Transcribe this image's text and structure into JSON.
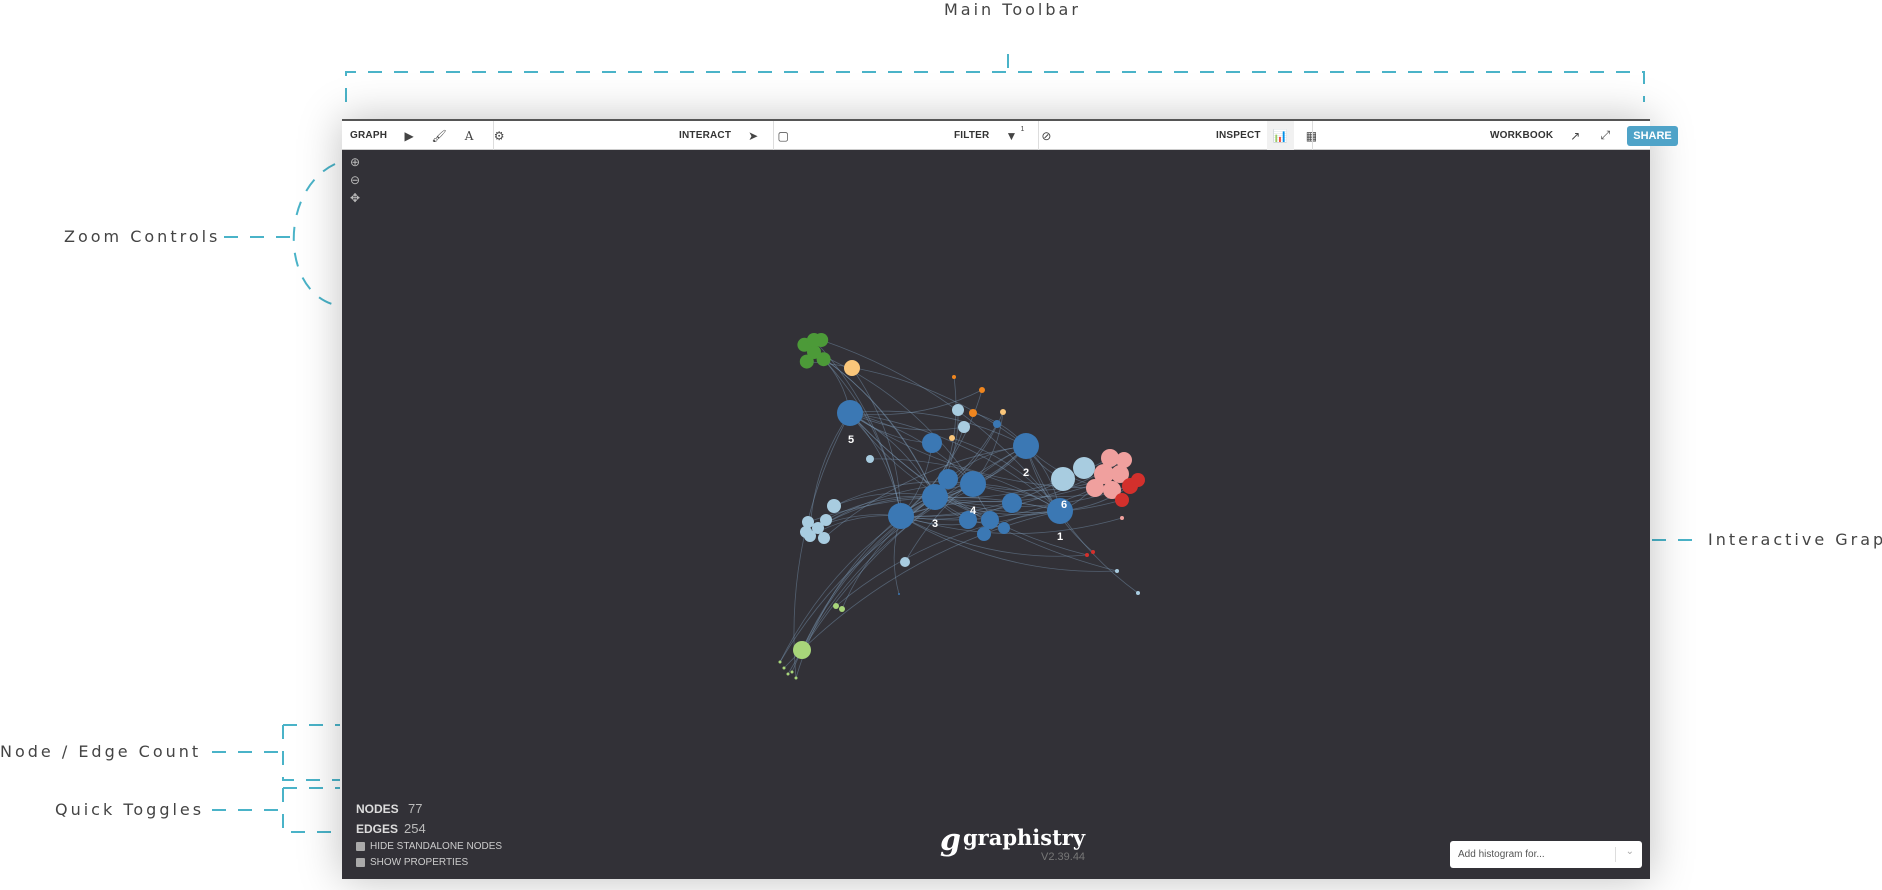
{
  "annotations": {
    "main_toolbar": "Main Toolbar",
    "zoom_controls": "Zoom Controls",
    "interactive_graph": "Interactive Graph",
    "node_edge_count": "Node / Edge Count",
    "quick_toggles": "Quick Toggles"
  },
  "accent_color": "#4ab3c8",
  "toolbar": {
    "graph": "GRAPH",
    "interact": "INTERACT",
    "filter": "FILTER",
    "filter_badge": "1",
    "inspect": "INSPECT",
    "workbook": "WORKBOOK",
    "share": "SHARE",
    "icons": [
      "play-icon",
      "brush-icon",
      "font-icon",
      "gears-icon",
      "pointer-icon",
      "select-box-icon",
      "filter-icon",
      "exclude-icon",
      "histogram-icon",
      "table-icon",
      "external-link-icon",
      "fullscreen-icon"
    ]
  },
  "zoom_controls": [
    "zoom-in-icon",
    "zoom-out-icon",
    "center-icon"
  ],
  "stats": {
    "nodes_label": "NODES",
    "nodes": "77",
    "edges_label": "EDGES",
    "edges": "254"
  },
  "toggles": {
    "hide_standalone": "HIDE STANDALONE NODES",
    "show_properties": "SHOW PROPERTIES"
  },
  "logo": {
    "text": "graphistry",
    "version": "V2.39.44"
  },
  "histogram": {
    "placeholder": "Add histogram for..."
  },
  "graph": {
    "labels": [
      "1",
      "2",
      "3",
      "4",
      "5",
      "6"
    ],
    "colors": {
      "blue": "#3b78b4",
      "light_blue": "#a8cce0",
      "green": "#4c9a38",
      "yellow": "#fac67a",
      "orange": "#f0861f",
      "pink": "#f0a09e",
      "red": "#d3302c",
      "light_green": "#a8d67a"
    }
  }
}
